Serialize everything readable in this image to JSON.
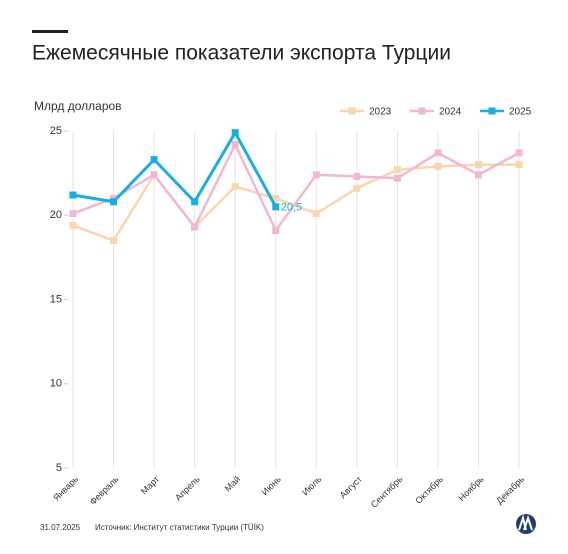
{
  "chart_data": {
    "type": "line",
    "title": "Ежемесячные показатели экспорта Турции",
    "y_label": "Млрд долларов",
    "categories": [
      "Январь",
      "Февраль",
      "Март",
      "Апрель",
      "Май",
      "Июнь",
      "Июль",
      "Август",
      "Сентябрь",
      "Октябрь",
      "Ноябрь",
      "Декабрь"
    ],
    "series": [
      {
        "name": "2023",
        "color": "#fad6ae",
        "values": [
          19.4,
          18.5,
          22.4,
          19.3,
          21.7,
          21.0,
          20.1,
          21.6,
          22.7,
          22.9,
          23.0,
          23.0
        ]
      },
      {
        "name": "2024",
        "color": "#f0b8d2",
        "values": [
          20.1,
          21.0,
          22.4,
          19.3,
          24.2,
          19.1,
          22.4,
          22.3,
          22.2,
          23.7,
          22.4,
          23.7
        ]
      },
      {
        "name": "2025",
        "color": "#1aaee0",
        "values": [
          21.2,
          20.8,
          23.3,
          20.8,
          24.9,
          20.5,
          null,
          null,
          null,
          null,
          null,
          null
        ],
        "value_labels": [
          null,
          null,
          null,
          null,
          null,
          "20,5",
          null,
          null,
          null,
          null,
          null,
          null
        ]
      }
    ],
    "ylim": [
      5,
      25
    ],
    "yticks": [
      5,
      10,
      15,
      20,
      25
    ],
    "grid": true,
    "legend": "top-right",
    "date": "31.07.2025",
    "source": "Источник: Институт статистики Турции (TÜİK)"
  }
}
